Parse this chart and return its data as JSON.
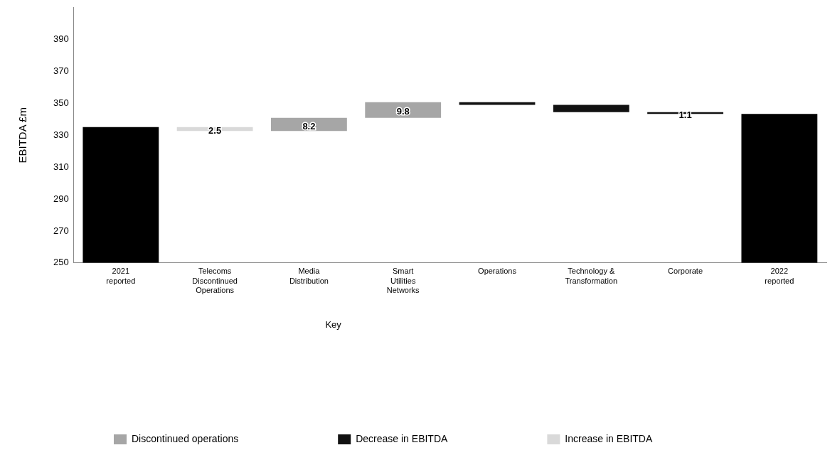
{
  "chart_data": {
    "type": "bar",
    "ylabel": "EBITDA £m",
    "legend_title": "Key",
    "legend": "bottom left",
    "grid": false,
    "categories": [
      "2021 reported",
      "Telecoms Discontinued Operations",
      "Media Distribution",
      "Smart Utilities Networks",
      "Operations",
      "Technology & Transformation",
      "Corporate",
      "2022 reported"
    ],
    "ylim": [
      250,
      410
    ],
    "yticks": [
      250,
      270,
      290,
      310,
      330,
      350,
      370,
      390
    ],
    "series": [
      {
        "color": "#000000",
        "values": [
          85.2,
          null,
          null,
          null,
          null,
          null,
          null,
          93.4
        ],
        "base": [
          250,
          null,
          null,
          null,
          null,
          null,
          null,
          250
        ]
      },
      {
        "name": "Discontinued operations",
        "color": "#a6a6a6",
        "values": [
          null,
          null,
          8.2,
          9.8,
          null,
          null,
          null,
          null
        ],
        "base": [
          null,
          null,
          332.7,
          340.9,
          null,
          null,
          null,
          null
        ],
        "value_labels": [
          null,
          null,
          "8.2",
          "9.8",
          null,
          null,
          null,
          null
        ]
      },
      {
        "name": "Decrease in EBITDA",
        "color": "#111111",
        "values": [
          null,
          null,
          null,
          null,
          1.6,
          4.6,
          1.1,
          null
        ],
        "base": [
          null,
          null,
          null,
          null,
          349.1,
          344.5,
          343.4,
          null
        ],
        "value_labels": [
          null,
          null,
          null,
          null,
          null,
          null,
          "1.1",
          null
        ]
      },
      {
        "name": "Increase in EBITDA",
        "color": "#d9d9d9",
        "values": [
          null,
          2.5,
          null,
          null,
          null,
          null,
          null,
          null
        ],
        "base": [
          null,
          332.7,
          null,
          null,
          null,
          null,
          null,
          null
        ],
        "value_labels": [
          null,
          "2.5",
          null,
          null,
          null,
          null,
          null,
          null
        ]
      }
    ]
  }
}
